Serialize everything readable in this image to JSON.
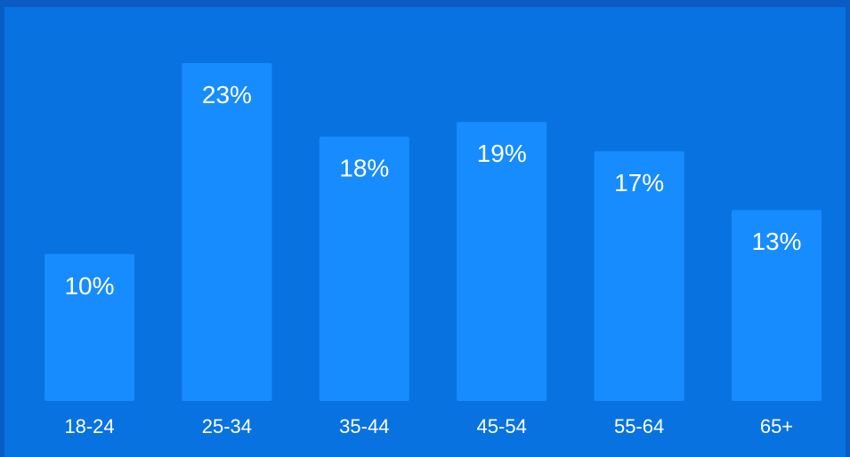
{
  "colors": {
    "outer_background": "#0a5cc4",
    "panel_background": "#0873e0",
    "bar_fill": "#178cff",
    "text": "#ffffff"
  },
  "chart_data": {
    "type": "bar",
    "title": "",
    "xlabel": "",
    "ylabel": "",
    "categories": [
      "18-24",
      "25-34",
      "35-44",
      "45-54",
      "55-64",
      "65+"
    ],
    "values": [
      10,
      23,
      18,
      19,
      17,
      13
    ],
    "value_labels": [
      "10%",
      "23%",
      "18%",
      "19%",
      "17%",
      "13%"
    ],
    "unit": "%",
    "ylim": [
      0,
      23
    ],
    "grid": false,
    "legend": "none"
  }
}
